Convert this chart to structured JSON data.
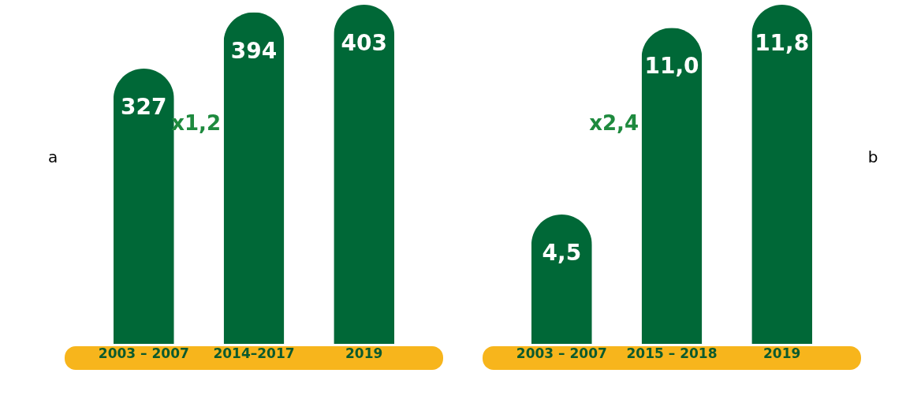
{
  "chart_data": [
    {
      "type": "bar",
      "categories": [
        "2003 – 2007",
        "2014–2017",
        "2019"
      ],
      "values": [
        327,
        394,
        403
      ],
      "value_labels": [
        "327",
        "394",
        "403"
      ],
      "color": "#006837",
      "annotations": [
        "x1,2",
        "a"
      ]
    },
    {
      "type": "bar",
      "categories": [
        "2003 – 2007",
        "2015 – 2018",
        "2019"
      ],
      "values": [
        4.5,
        11.0,
        11.8
      ],
      "value_labels": [
        "4,5",
        "11,0",
        "11,8"
      ],
      "color": "#006837",
      "annotations": [
        "x2,4",
        "b"
      ]
    }
  ]
}
